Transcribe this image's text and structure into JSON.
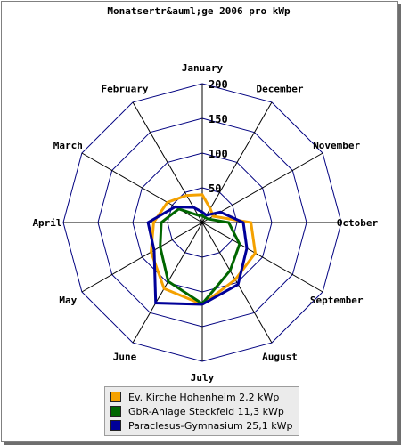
{
  "chart_data": {
    "type": "radar",
    "title": "Monatsertr&auml;ge 2006 pro kWp",
    "categories": [
      "January",
      "December",
      "November",
      "October",
      "September",
      "August",
      "July",
      "June",
      "May",
      "April",
      "March",
      "February"
    ],
    "rlim": [
      0,
      200
    ],
    "r_ticks": [
      "50",
      "100",
      "150",
      "200"
    ],
    "grid": true,
    "legend_position": "bottom",
    "series": [
      {
        "name": "Ev. Kirche Hohenheim 2,2 kWp",
        "color": "#f4a100",
        "values": [
          40,
          23,
          18,
          70,
          88,
          95,
          118,
          110,
          85,
          70,
          58,
          45
        ]
      },
      {
        "name": "GbR-Anlage Steckfeld 11,3 kWp",
        "color": "#006600",
        "values": [
          10,
          8,
          10,
          38,
          62,
          80,
          117,
          98,
          70,
          59,
          39,
          12
        ]
      },
      {
        "name": "Paraclesus-Gymnasium 25,1 kWp",
        "color": "#000099",
        "values": [
          15,
          12,
          30,
          59,
          74,
          103,
          118,
          134,
          80,
          78,
          45,
          25
        ]
      }
    ]
  }
}
